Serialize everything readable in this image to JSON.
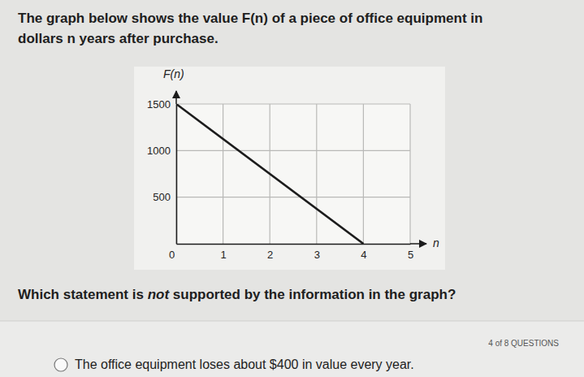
{
  "page": {
    "prompt_lines": [
      "The graph below shows the value F(n) of a piece of office equipment in",
      "dollars n years after purchase."
    ],
    "question": {
      "before": "Which statement is ",
      "emphasis": "not",
      "after": " supported by the information in the graph?"
    },
    "progress": "4 of 8 QUESTIONS",
    "options": [
      "The office equipment loses about $400 in value every year."
    ]
  },
  "chart_data": {
    "type": "line",
    "x_label": "n",
    "y_label": "F(n)",
    "x": [
      0,
      4
    ],
    "values": [
      1500,
      0
    ],
    "color": "#1c1c1c",
    "xlim": [
      0,
      5
    ],
    "xticks": [
      0,
      1,
      2,
      3,
      4,
      5
    ],
    "ylim": [
      0,
      1500
    ],
    "yticks": [
      500,
      1000,
      1500
    ],
    "grid": true
  }
}
